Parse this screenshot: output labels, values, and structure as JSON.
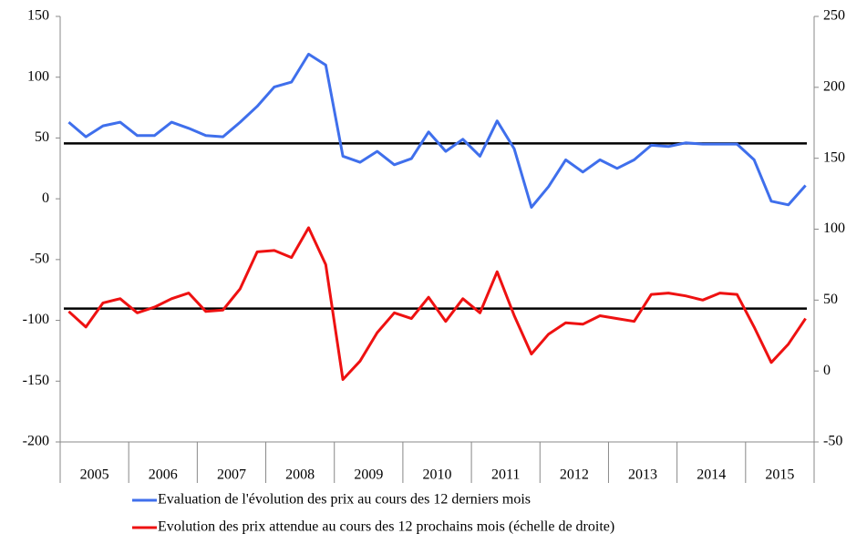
{
  "chart_data": {
    "type": "line",
    "categories": [
      "2005",
      null,
      null,
      null,
      "2006",
      null,
      null,
      null,
      "2007",
      null,
      null,
      null,
      "2008",
      null,
      null,
      null,
      "2009",
      null,
      null,
      null,
      "2010",
      null,
      null,
      null,
      "2011",
      null,
      null,
      null,
      "2012",
      null,
      null,
      null,
      "2013",
      null,
      null,
      null,
      "2014",
      null,
      null,
      null,
      "2015",
      null,
      null,
      null
    ],
    "series": [
      {
        "name": "Evaluation de l'évolution des prix au cours des 12 derniers mois",
        "color": "#3f6fec",
        "axis": "y",
        "values": [
          63,
          51,
          60,
          63,
          52,
          52,
          63,
          58,
          52,
          51,
          63,
          76,
          92,
          96,
          119,
          110,
          35,
          30,
          39,
          28,
          33,
          55,
          39,
          49,
          35,
          64,
          41,
          -7,
          10,
          32,
          22,
          32,
          25,
          32,
          44,
          43,
          46,
          45,
          45,
          45,
          32,
          -2,
          -5,
          11
        ]
      },
      {
        "name": "Evolution des prix attendue au cours des 12 prochains mois (échelle de droite)",
        "color": "#ee1111",
        "axis": "y2",
        "values": [
          42,
          31,
          48,
          51,
          41,
          45,
          51,
          55,
          42,
          43,
          58,
          84,
          85,
          80,
          101,
          75,
          -6,
          7,
          27,
          41,
          37,
          52,
          35,
          51,
          41,
          70,
          39,
          12,
          26,
          34,
          33,
          39,
          37,
          35,
          54,
          55,
          53,
          50,
          55,
          54,
          31,
          6,
          19,
          37
        ]
      }
    ],
    "reference_lines": [
      {
        "value": 45.5,
        "axis": "y",
        "color": "#000000"
      },
      {
        "value": 44,
        "axis": "y2",
        "color": "#000000"
      }
    ],
    "ylim": [
      -200,
      150
    ],
    "yticks": [
      -200,
      -150,
      -100,
      -50,
      0,
      50,
      100,
      150
    ],
    "y2lim": [
      -50,
      250
    ],
    "y2ticks": [
      -50,
      0,
      50,
      100,
      150,
      200,
      250
    ],
    "legend": "bottom"
  }
}
